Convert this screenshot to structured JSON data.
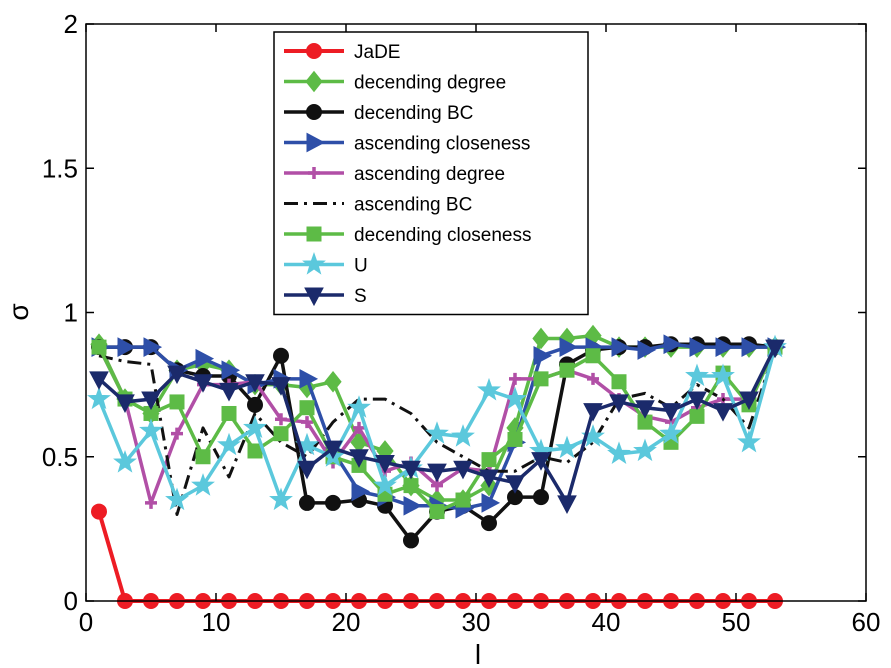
{
  "chart_data": {
    "type": "line",
    "title": "",
    "xlabel": "l",
    "ylabel": "σ",
    "xlim": [
      0,
      60
    ],
    "ylim": [
      0,
      2
    ],
    "xticks": [
      0,
      10,
      20,
      30,
      40,
      50,
      60
    ],
    "yticks": [
      0,
      0.5,
      1,
      1.5,
      2
    ],
    "ytick_labels": [
      "0",
      "0.5",
      "1",
      "1.5",
      "2"
    ],
    "grid": false,
    "legend_position": "top-center",
    "series": [
      {
        "name": "JaDE",
        "color": "#ED1C24",
        "marker": "circle",
        "dash": "solid",
        "width": 4,
        "x": [
          1,
          3,
          5,
          7,
          9,
          11,
          13,
          15,
          17,
          19,
          21,
          23,
          25,
          27,
          29,
          31,
          33,
          35,
          37,
          39,
          41,
          43,
          45,
          47,
          49,
          51,
          53
        ],
        "y": [
          0.31,
          0,
          0,
          0,
          0,
          0,
          0,
          0,
          0,
          0,
          0,
          0,
          0,
          0,
          0,
          0,
          0,
          0,
          0,
          0,
          0,
          0,
          0,
          0,
          0,
          0,
          0
        ]
      },
      {
        "name": "decending degree",
        "color": "#5DBB46",
        "marker": "diamond",
        "dash": "solid",
        "width": 3.5,
        "x": [
          1,
          3,
          5,
          7,
          9,
          11,
          13,
          15,
          17,
          19,
          21,
          23,
          25,
          27,
          29,
          31,
          33,
          35,
          37,
          39,
          41,
          43,
          45,
          47,
          49,
          51,
          53
        ],
        "y": [
          0.89,
          0.7,
          0.65,
          0.8,
          0.82,
          0.8,
          0.75,
          0.75,
          0.74,
          0.76,
          0.55,
          0.52,
          0.4,
          0.35,
          0.35,
          0.4,
          0.6,
          0.91,
          0.91,
          0.92,
          0.88,
          0.88,
          0.88,
          0.88,
          0.88,
          0.88,
          0.88
        ]
      },
      {
        "name": "decending BC",
        "color": "#111111",
        "marker": "circle",
        "dash": "solid",
        "width": 3.5,
        "x": [
          1,
          3,
          5,
          7,
          9,
          11,
          13,
          15,
          17,
          19,
          21,
          23,
          25,
          27,
          29,
          31,
          33,
          35,
          37,
          39,
          41,
          43,
          45,
          47,
          49,
          51,
          53
        ],
        "y": [
          0.88,
          0.88,
          0.88,
          0.8,
          0.78,
          0.78,
          0.68,
          0.85,
          0.34,
          0.34,
          0.35,
          0.33,
          0.21,
          0.31,
          0.33,
          0.27,
          0.36,
          0.36,
          0.82,
          0.87,
          0.88,
          0.88,
          0.89,
          0.89,
          0.89,
          0.89,
          0.88
        ]
      },
      {
        "name": "ascending closeness",
        "color": "#2E4FA8",
        "marker": "triangle-right",
        "dash": "solid",
        "width": 3.5,
        "x": [
          1,
          3,
          5,
          7,
          9,
          11,
          13,
          15,
          17,
          19,
          21,
          23,
          25,
          27,
          29,
          31,
          33,
          35,
          37,
          39,
          41,
          43,
          45,
          47,
          49,
          51,
          53
        ],
        "y": [
          0.88,
          0.88,
          0.88,
          0.8,
          0.84,
          0.8,
          0.75,
          0.77,
          0.77,
          0.52,
          0.38,
          0.36,
          0.33,
          0.33,
          0.32,
          0.34,
          0.55,
          0.85,
          0.88,
          0.88,
          0.88,
          0.87,
          0.89,
          0.88,
          0.88,
          0.88,
          0.88
        ]
      },
      {
        "name": "ascending degree",
        "color": "#B14FA6",
        "marker": "plus",
        "dash": "solid",
        "width": 3.5,
        "x": [
          1,
          3,
          5,
          7,
          9,
          11,
          13,
          15,
          17,
          19,
          21,
          23,
          25,
          27,
          29,
          31,
          33,
          35,
          37,
          39,
          41,
          43,
          45,
          47,
          49,
          51,
          53
        ],
        "y": [
          0.88,
          0.7,
          0.34,
          0.58,
          0.75,
          0.75,
          0.76,
          0.63,
          0.62,
          0.48,
          0.6,
          0.45,
          0.48,
          0.4,
          0.46,
          0.45,
          0.77,
          0.77,
          0.8,
          0.77,
          0.7,
          0.64,
          0.62,
          0.67,
          0.7,
          0.7,
          0.87
        ]
      },
      {
        "name": "ascending BC",
        "color": "#111111",
        "marker": "none",
        "dash": "dashdot",
        "width": 3,
        "x": [
          1,
          3,
          5,
          7,
          9,
          11,
          13,
          15,
          17,
          19,
          21,
          23,
          25,
          27,
          29,
          31,
          33,
          35,
          37,
          39,
          41,
          43,
          45,
          47,
          49,
          51,
          53
        ],
        "y": [
          0.85,
          0.83,
          0.82,
          0.3,
          0.6,
          0.43,
          0.65,
          0.55,
          0.5,
          0.62,
          0.7,
          0.7,
          0.65,
          0.55,
          0.5,
          0.45,
          0.45,
          0.5,
          0.48,
          0.55,
          0.7,
          0.72,
          0.67,
          0.75,
          0.7,
          0.6,
          0.87
        ]
      },
      {
        "name": "decending closeness",
        "color": "#5DBB46",
        "marker": "square",
        "dash": "solid",
        "width": 3.5,
        "x": [
          1,
          3,
          5,
          7,
          9,
          11,
          13,
          15,
          17,
          19,
          21,
          23,
          25,
          27,
          29,
          31,
          33,
          35,
          37,
          39,
          41,
          43,
          45,
          47,
          49,
          51,
          53
        ],
        "y": [
          0.88,
          0.7,
          0.65,
          0.69,
          0.5,
          0.65,
          0.52,
          0.58,
          0.67,
          0.5,
          0.47,
          0.37,
          0.4,
          0.31,
          0.35,
          0.49,
          0.56,
          0.77,
          0.8,
          0.85,
          0.76,
          0.62,
          0.55,
          0.64,
          0.79,
          0.68,
          0.88
        ]
      },
      {
        "name": "U",
        "color": "#5BC8DC",
        "marker": "star",
        "dash": "solid",
        "width": 3.5,
        "x": [
          1,
          3,
          5,
          7,
          9,
          11,
          13,
          15,
          17,
          19,
          21,
          23,
          25,
          27,
          29,
          31,
          33,
          35,
          37,
          39,
          41,
          43,
          45,
          47,
          49,
          51,
          53
        ],
        "y": [
          0.7,
          0.48,
          0.59,
          0.35,
          0.4,
          0.54,
          0.6,
          0.35,
          0.54,
          0.5,
          0.67,
          0.4,
          0.46,
          0.58,
          0.57,
          0.73,
          0.7,
          0.52,
          0.53,
          0.57,
          0.51,
          0.52,
          0.58,
          0.78,
          0.78,
          0.55,
          0.88
        ]
      },
      {
        "name": "S",
        "color": "#1B2A6B",
        "marker": "triangle-down",
        "dash": "solid",
        "width": 3.5,
        "x": [
          1,
          3,
          5,
          7,
          9,
          11,
          13,
          15,
          17,
          19,
          21,
          23,
          25,
          27,
          29,
          31,
          33,
          35,
          37,
          39,
          41,
          43,
          45,
          47,
          49,
          51,
          53
        ],
        "y": [
          0.77,
          0.69,
          0.7,
          0.79,
          0.76,
          0.73,
          0.76,
          0.75,
          0.46,
          0.53,
          0.5,
          0.48,
          0.46,
          0.45,
          0.46,
          0.43,
          0.41,
          0.49,
          0.34,
          0.66,
          0.69,
          0.67,
          0.66,
          0.7,
          0.66,
          0.7,
          0.88
        ]
      }
    ]
  }
}
